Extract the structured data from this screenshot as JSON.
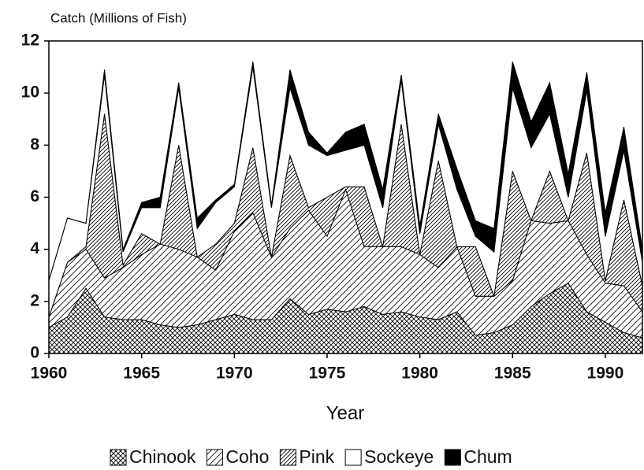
{
  "chart_data": {
    "type": "stacked-area",
    "y_label": "Catch (Millions of Fish)",
    "x_label": "Year",
    "x": [
      1960,
      1961,
      1962,
      1963,
      1964,
      1965,
      1966,
      1967,
      1968,
      1969,
      1970,
      1971,
      1972,
      1973,
      1974,
      1975,
      1976,
      1977,
      1978,
      1979,
      1980,
      1981,
      1982,
      1983,
      1984,
      1985,
      1986,
      1987,
      1988,
      1989,
      1990,
      1991,
      1992
    ],
    "series": [
      {
        "name": "Chinook",
        "color": "#000000",
        "pattern": "crosshatch",
        "values": [
          1.0,
          1.4,
          2.5,
          1.4,
          1.3,
          1.3,
          1.1,
          1.0,
          1.1,
          1.3,
          1.5,
          1.3,
          1.3,
          2.1,
          1.5,
          1.7,
          1.6,
          1.8,
          1.5,
          1.6,
          1.4,
          1.3,
          1.6,
          0.7,
          0.8,
          1.1,
          1.8,
          2.3,
          2.7,
          1.6,
          1.2,
          0.8,
          0.6
        ]
      },
      {
        "name": "Coho",
        "color": "#000000",
        "pattern": "sparse-hatch",
        "values": [
          0.4,
          2.1,
          1.5,
          1.5,
          2.0,
          2.5,
          3.1,
          3.0,
          2.6,
          1.9,
          3.2,
          4.1,
          2.4,
          2.7,
          4.0,
          2.8,
          4.7,
          2.3,
          2.6,
          2.5,
          2.4,
          2.0,
          2.5,
          1.5,
          1.4,
          1.7,
          3.3,
          2.7,
          2.4,
          2.2,
          1.5,
          1.8,
          1.0
        ]
      },
      {
        "name": "Pink",
        "color": "#000000",
        "pattern": "dense-hatch",
        "values": [
          0,
          0,
          0.1,
          6.3,
          0.1,
          0.8,
          0,
          4.0,
          0,
          1.0,
          0.3,
          2.5,
          0,
          2.8,
          0.1,
          1.5,
          0.1,
          2.3,
          0,
          4.7,
          0,
          4.1,
          0,
          1.9,
          0,
          4.2,
          0,
          2.0,
          0,
          3.9,
          0.1,
          3.3,
          1.0
        ]
      },
      {
        "name": "Sockeye",
        "color": "#ffffff",
        "pattern": "none",
        "values": [
          1.4,
          1.7,
          0.9,
          1.5,
          0.5,
          1.0,
          1.4,
          2.2,
          1.1,
          1.6,
          1.4,
          3.1,
          1.9,
          2.6,
          2.4,
          1.6,
          1.4,
          1.6,
          1.5,
          1.7,
          0.8,
          1.4,
          2.2,
          0.4,
          1.7,
          3.2,
          2.8,
          2.2,
          0.9,
          2.4,
          1.7,
          1.9,
          0.9
        ]
      },
      {
        "name": "Chum",
        "color": "#000000",
        "pattern": "none",
        "values": [
          0,
          0,
          0,
          0.2,
          0.1,
          0.2,
          0.4,
          0.2,
          0.4,
          0.1,
          0.1,
          0.2,
          0.1,
          0.7,
          0.5,
          0.1,
          0.7,
          0.8,
          0.7,
          0.2,
          0.3,
          0.4,
          0.8,
          0.6,
          0.9,
          1.0,
          1.0,
          1.2,
          0.9,
          0.7,
          0.9,
          0.9,
          0.5
        ]
      }
    ],
    "xlim": [
      1960,
      1992
    ],
    "ylim": [
      0,
      12
    ],
    "xticks": [
      1960,
      1965,
      1970,
      1975,
      1980,
      1985,
      1990
    ],
    "yticks": [
      0,
      2,
      4,
      6,
      8,
      10,
      12
    ],
    "legend": "bottom"
  }
}
